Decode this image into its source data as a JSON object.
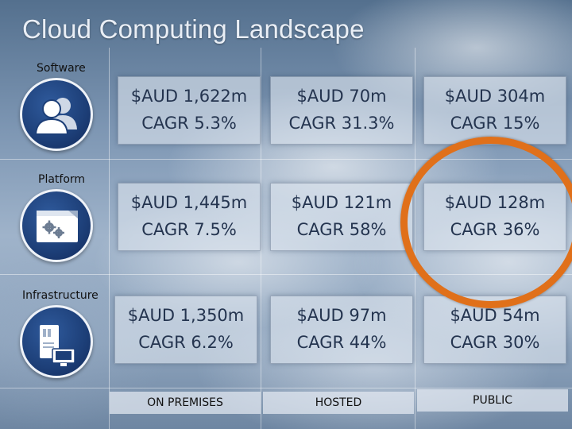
{
  "title": "Cloud Computing Landscape",
  "rows": [
    {
      "label": "Software",
      "icon": "users-icon"
    },
    {
      "label": "Platform",
      "icon": "gears-window-icon"
    },
    {
      "label": "Infrastructure",
      "icon": "server-monitor-icon"
    }
  ],
  "cells": [
    [
      {
        "amount": "$AUD 1,622m",
        "cagr": "CAGR 5.3%"
      },
      {
        "amount": "$AUD 70m",
        "cagr": "CAGR 31.3%"
      },
      {
        "amount": "$AUD 304m",
        "cagr": "CAGR 15%"
      }
    ],
    [
      {
        "amount": "$AUD 1,445m",
        "cagr": "CAGR 7.5%"
      },
      {
        "amount": "$AUD 121m",
        "cagr": "CAGR 58%"
      },
      {
        "amount": "$AUD 128m",
        "cagr": "CAGR 36%"
      }
    ],
    [
      {
        "amount": "$AUD 1,350m",
        "cagr": "CAGR 6.2%"
      },
      {
        "amount": "$AUD 97m",
        "cagr": "CAGR 44%"
      },
      {
        "amount": "$AUD 54m",
        "cagr": "CAGR 30%"
      }
    ]
  ],
  "columns": [
    "ON PREMISES",
    "HOSTED",
    "PUBLIC"
  ],
  "colors": {
    "highlight": "#e0701a",
    "icon_bg": "#1d3f78"
  }
}
